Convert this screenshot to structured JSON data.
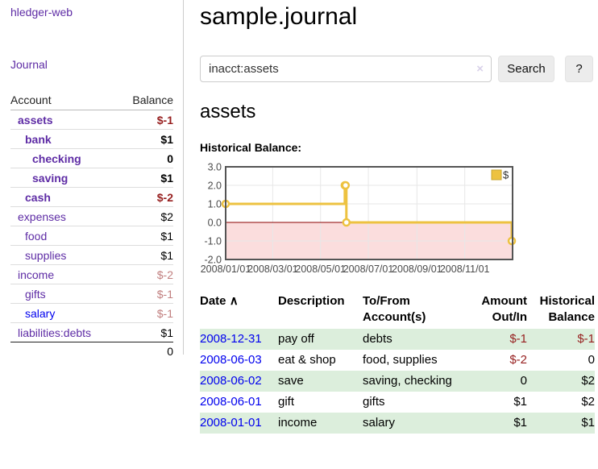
{
  "app": {
    "brand": "hledger-web",
    "nav_journal": "Journal"
  },
  "sidebar": {
    "header": {
      "account": "Account",
      "balance": "Balance"
    },
    "accounts": [
      {
        "name": "assets",
        "balance": "$-1"
      },
      {
        "name": "bank",
        "balance": "$1"
      },
      {
        "name": "checking",
        "balance": "0"
      },
      {
        "name": "saving",
        "balance": "$1"
      },
      {
        "name": "cash",
        "balance": "$-2"
      },
      {
        "name": "expenses",
        "balance": "$2"
      },
      {
        "name": "food",
        "balance": "$1"
      },
      {
        "name": "supplies",
        "balance": "$1"
      },
      {
        "name": "income",
        "balance": "$-2"
      },
      {
        "name": "gifts",
        "balance": "$-1"
      },
      {
        "name": "salary",
        "balance": "$-1"
      },
      {
        "name": "liabilities:debts",
        "balance": "$1"
      }
    ],
    "total": "0"
  },
  "header": {
    "title": "sample.journal"
  },
  "search": {
    "value": "inacct:assets",
    "clear_icon": "×",
    "button_label": "Search",
    "help_label": "?"
  },
  "account_page": {
    "title": "assets",
    "chart_label": "Historical Balance:"
  },
  "chart_data": {
    "type": "line",
    "step": true,
    "series": [
      {
        "name": "$",
        "points": [
          [
            "2008/01/01",
            1.0
          ],
          [
            "2008/06/01",
            2.0
          ],
          [
            "2008/06/02",
            2.0
          ],
          [
            "2008/06/03",
            0.0
          ],
          [
            "2008/12/31",
            -1.0
          ]
        ]
      }
    ],
    "xrange": [
      "2008/01/01",
      "2009/01/01"
    ],
    "ylim": [
      -2.0,
      3.0
    ],
    "xticks": [
      "2008/01/01",
      "2008/03/01",
      "2008/05/01",
      "2008/07/01",
      "2008/09/01",
      "2008/11/01"
    ],
    "yticks": [
      "3.0",
      "2.0",
      "1.0",
      "0.0",
      "-1.0",
      "-2.0"
    ],
    "legend": {
      "label": "$",
      "position": "top-right"
    },
    "colors": {
      "series": "#edc240",
      "negative_fill": "#fbdddd",
      "zero_line": "#8b0000",
      "grid": "#e7e7e7",
      "border": "#545454",
      "tick_text": "#4a4a4a"
    }
  },
  "register_table": {
    "columns": [
      {
        "label": "Date",
        "sort_icon": "∧"
      },
      {
        "label": "Description"
      },
      {
        "label": "To/From Account(s)"
      },
      {
        "label": "Amount Out/In"
      },
      {
        "label": "Historical Balance"
      }
    ],
    "rows": [
      {
        "date": "2008-12-31",
        "description": "pay off",
        "accounts": "debts",
        "amount": "$-1",
        "balance": "$-1"
      },
      {
        "date": "2008-06-03",
        "description": "eat & shop",
        "accounts": "food, supplies",
        "amount": "$-2",
        "balance": "0"
      },
      {
        "date": "2008-06-02",
        "description": "save",
        "accounts": "saving, checking",
        "amount": "0",
        "balance": "$2"
      },
      {
        "date": "2008-06-01",
        "description": "gift",
        "accounts": "gifts",
        "amount": "$1",
        "balance": "$2"
      },
      {
        "date": "2008-01-01",
        "description": "income",
        "accounts": "salary",
        "amount": "$1",
        "balance": "$1"
      }
    ]
  },
  "colors": {
    "accent_purple": "#5e2ca5",
    "link_blue": "#0000ee",
    "neg_strong": "#961e1e",
    "neg_soft": "#c17f7f",
    "row_green": "#dceedc"
  }
}
